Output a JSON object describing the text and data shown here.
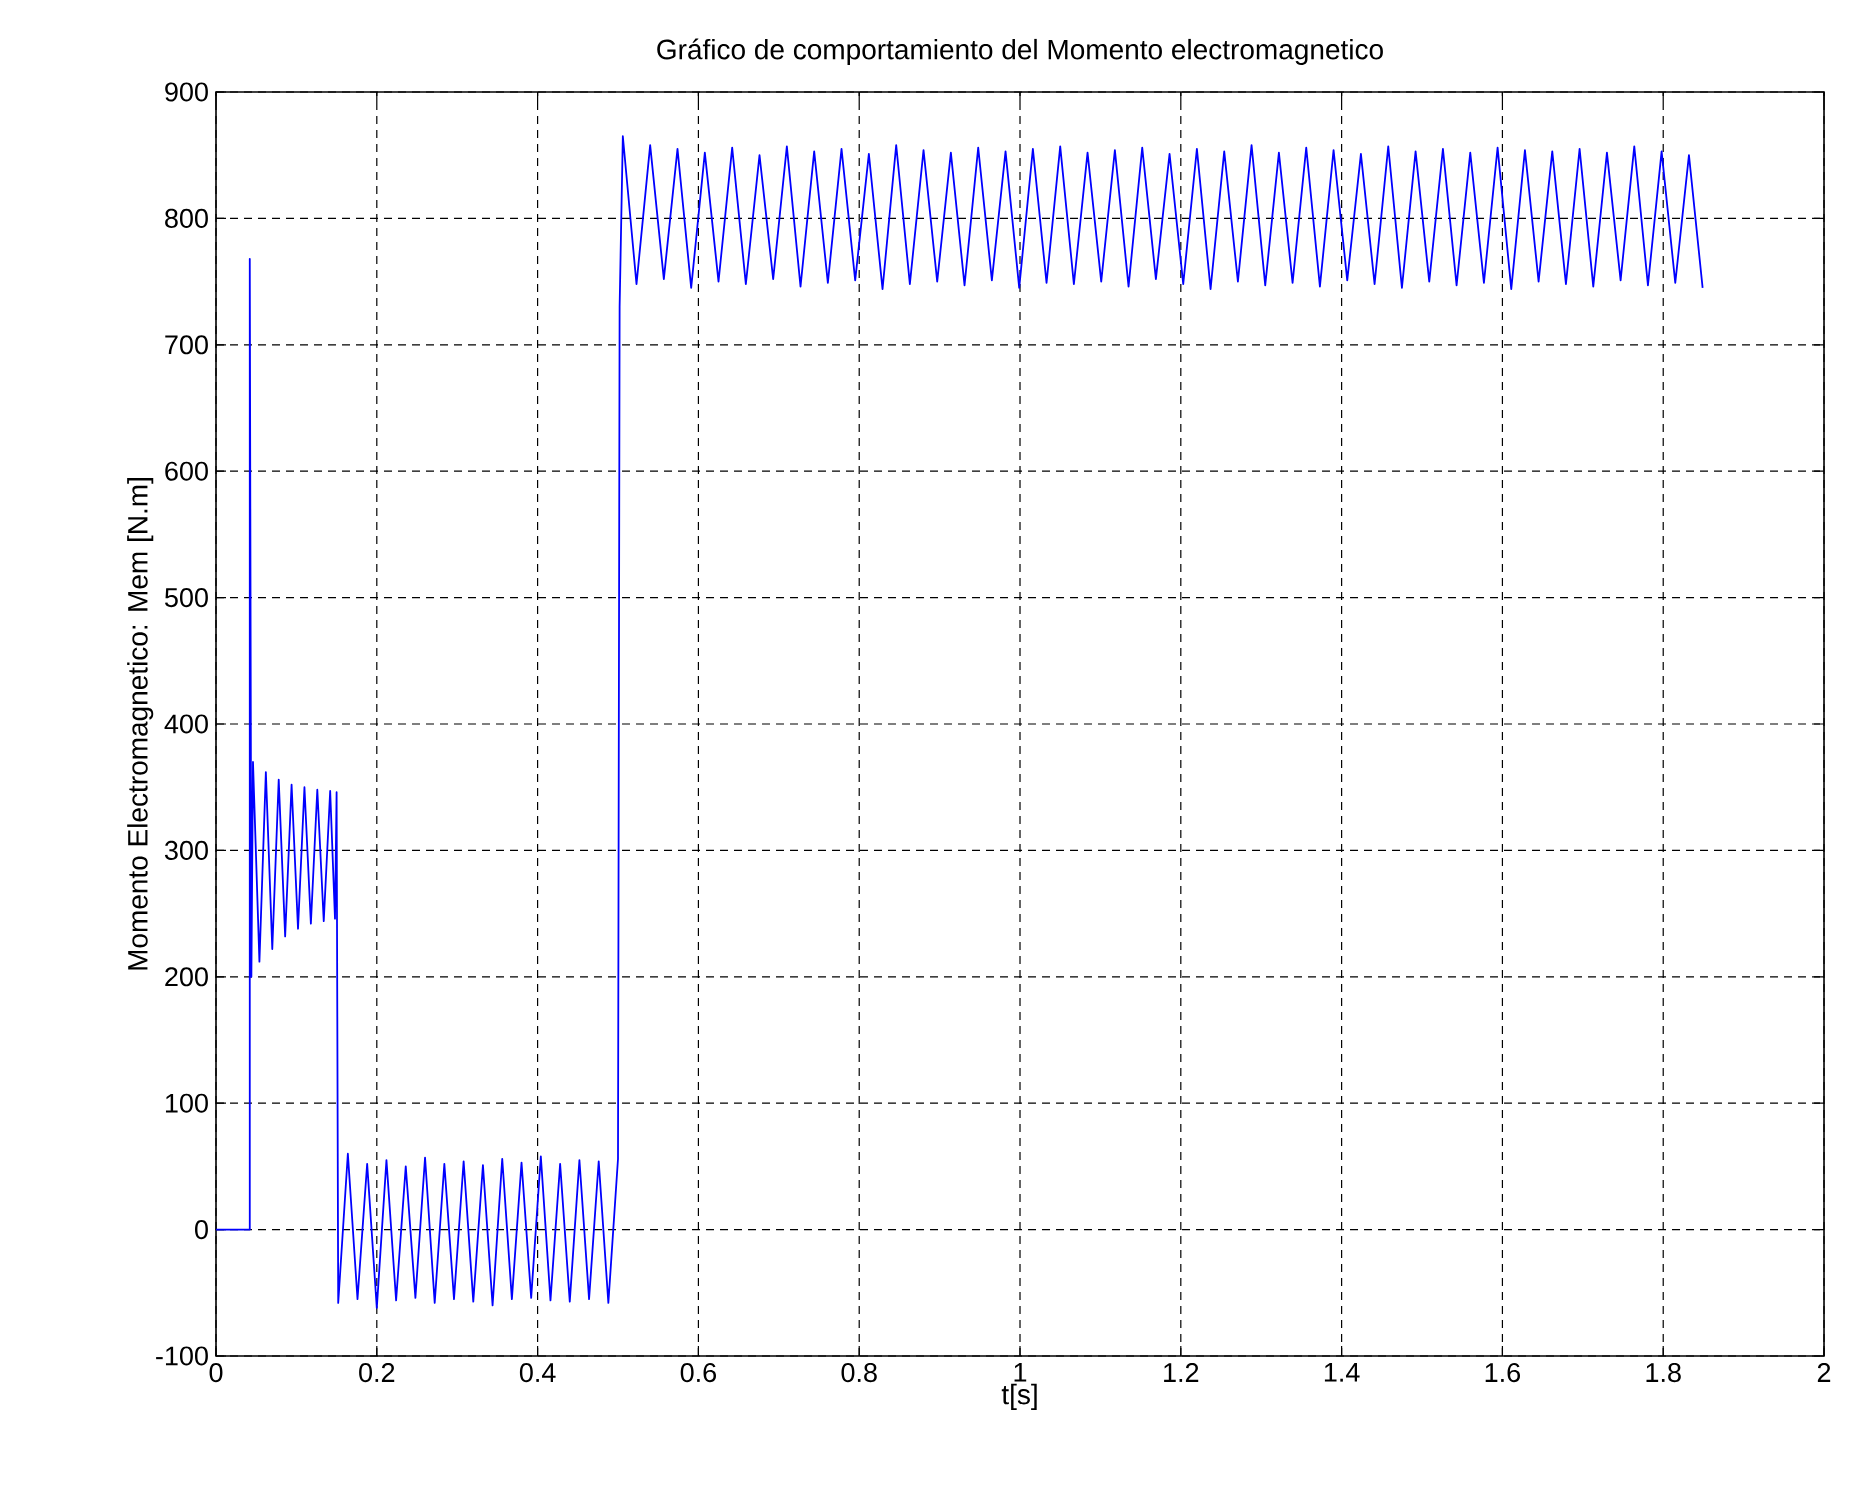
{
  "chart_data": {
    "type": "line",
    "title": "Gráfico de comportamiento del Momento electromagnetico",
    "xlabel": "t[s]",
    "ylabel": "Momento Electromagnetico: Mem [N.m]",
    "xlim": [
      0,
      2
    ],
    "ylim": [
      -100,
      900
    ],
    "xticks": [
      0,
      0.2,
      0.4,
      0.6,
      0.8,
      1,
      1.2,
      1.4,
      1.6,
      1.8,
      2
    ],
    "yticks": [
      -100,
      0,
      100,
      200,
      300,
      400,
      500,
      600,
      700,
      800,
      900
    ],
    "grid": true,
    "line_style": "solid",
    "series": [
      {
        "color": "#0000ff",
        "x": [
          0,
          0.042,
          0.042,
          0.044,
          0.046,
          0.054,
          0.062,
          0.07,
          0.078,
          0.086,
          0.094,
          0.102,
          0.11,
          0.118,
          0.126,
          0.134,
          0.142,
          0.148,
          0.15,
          0.152,
          0.164,
          0.176,
          0.188,
          0.2,
          0.212,
          0.224,
          0.236,
          0.248,
          0.26,
          0.272,
          0.284,
          0.296,
          0.308,
          0.32,
          0.332,
          0.344,
          0.356,
          0.368,
          0.38,
          0.392,
          0.404,
          0.416,
          0.428,
          0.44,
          0.452,
          0.464,
          0.476,
          0.488,
          0.5,
          0.502,
          0.506,
          0.523,
          0.54,
          0.557,
          0.574,
          0.591,
          0.608,
          0.625,
          0.642,
          0.659,
          0.676,
          0.693,
          0.71,
          0.727,
          0.744,
          0.761,
          0.778,
          0.795,
          0.812,
          0.829,
          0.846,
          0.863,
          0.88,
          0.897,
          0.914,
          0.931,
          0.948,
          0.965,
          0.982,
          0.999,
          1.016,
          1.033,
          1.05,
          1.067,
          1.084,
          1.101,
          1.118,
          1.135,
          1.152,
          1.169,
          1.186,
          1.203,
          1.22,
          1.237,
          1.254,
          1.271,
          1.288,
          1.305,
          1.322,
          1.339,
          1.356,
          1.373,
          1.39,
          1.407,
          1.424,
          1.441,
          1.458,
          1.475,
          1.492,
          1.509,
          1.526,
          1.543,
          1.56,
          1.577,
          1.594,
          1.611,
          1.628,
          1.645,
          1.662,
          1.679,
          1.696,
          1.713,
          1.73,
          1.747,
          1.764,
          1.781,
          1.798,
          1.815,
          1.832,
          1.849
        ],
        "values": [
          0,
          0,
          768,
          200,
          370,
          212,
          362,
          222,
          356,
          232,
          352,
          238,
          350,
          242,
          348,
          244,
          347,
          246,
          346,
          -58,
          60,
          -55,
          52,
          -62,
          55,
          -56,
          50,
          -54,
          57,
          -58,
          52,
          -55,
          54,
          -57,
          51,
          -60,
          56,
          -55,
          53,
          -54,
          58,
          -56,
          52,
          -57,
          55,
          -55,
          54,
          -58,
          56,
          730,
          865,
          748,
          858,
          752,
          855,
          745,
          852,
          750,
          856,
          748,
          850,
          752,
          857,
          746,
          853,
          749,
          855,
          751,
          851,
          744,
          858,
          748,
          854,
          750,
          852,
          747,
          856,
          751,
          853,
          745,
          855,
          749,
          857,
          748,
          852,
          750,
          854,
          746,
          856,
          752,
          851,
          748,
          855,
          744,
          853,
          750,
          858,
          747,
          852,
          749,
          856,
          746,
          854,
          751,
          851,
          748,
          857,
          745,
          853,
          750,
          855,
          747,
          852,
          749,
          856,
          744,
          854,
          750,
          853,
          748,
          855,
          746,
          852,
          751,
          857,
          747,
          853,
          749,
          850,
          745
        ]
      }
    ]
  }
}
